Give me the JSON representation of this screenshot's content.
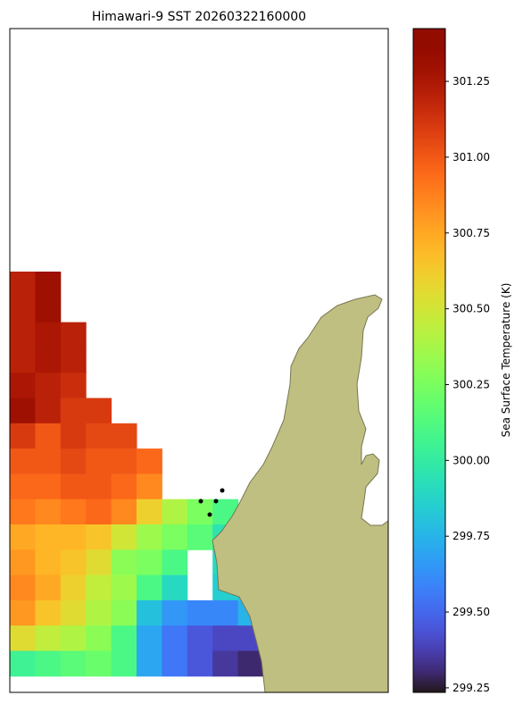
{
  "chart_data": {
    "type": "heatmap",
    "title": "Himawari-9 SST 20260322160000",
    "colorbar_label": "Sea Surface Temperature (K)",
    "cmap": "turbo",
    "clim": [
      299.235,
      301.424
    ],
    "cticks": [
      299.25,
      {
        "value": 299.5,
        "label": "299.50"
      },
      299.75,
      {
        "value": 300,
        "label": "300.00"
      },
      300.25,
      {
        "value": 300.5,
        "label": "300.50"
      },
      300.75,
      {
        "value": 301,
        "label": "301.00"
      },
      301.25
    ],
    "values": [
      [
        301.2,
        301.3,
        null,
        null,
        null,
        null,
        null,
        null,
        null,
        null
      ],
      [
        301.2,
        301.3,
        null,
        null,
        null,
        null,
        null,
        null,
        null,
        null
      ],
      [
        301.2,
        301.25,
        301.2,
        null,
        null,
        null,
        null,
        null,
        null,
        null
      ],
      [
        301.2,
        301.25,
        301.2,
        null,
        null,
        null,
        null,
        null,
        null,
        null
      ],
      [
        301.25,
        301.2,
        301.15,
        null,
        null,
        null,
        null,
        null,
        null,
        null
      ],
      [
        301.3,
        301.2,
        301.1,
        301.1,
        null,
        null,
        null,
        null,
        null,
        null
      ],
      [
        301.1,
        301.0,
        301.1,
        301.05,
        301.05,
        null,
        null,
        null,
        null,
        null
      ],
      [
        301.0,
        301.0,
        301.05,
        301.0,
        301.0,
        300.95,
        null,
        null,
        null,
        null
      ],
      [
        300.95,
        300.95,
        301.0,
        301.0,
        300.95,
        300.85,
        null,
        null,
        null,
        null
      ],
      [
        300.9,
        300.85,
        300.9,
        300.95,
        300.85,
        300.6,
        300.4,
        300.25,
        300.1,
        null
      ],
      [
        300.75,
        300.7,
        300.7,
        300.65,
        300.5,
        300.35,
        300.25,
        300.15,
        299.95,
        null
      ],
      [
        300.8,
        300.7,
        300.65,
        300.55,
        300.3,
        300.25,
        300.1,
        null,
        299.9,
        null
      ],
      [
        300.85,
        300.75,
        300.6,
        300.45,
        300.35,
        300.1,
        299.9,
        null,
        299.85,
        299.8
      ],
      [
        300.8,
        300.65,
        300.55,
        300.4,
        300.3,
        299.8,
        299.65,
        299.6,
        299.6,
        299.75
      ],
      [
        300.55,
        300.45,
        300.4,
        300.3,
        300.1,
        299.7,
        299.55,
        299.45,
        299.4,
        299.4
      ],
      [
        300.05,
        300.1,
        300.15,
        300.2,
        300.1,
        299.7,
        299.55,
        299.45,
        299.35,
        299.3
      ]
    ]
  }
}
